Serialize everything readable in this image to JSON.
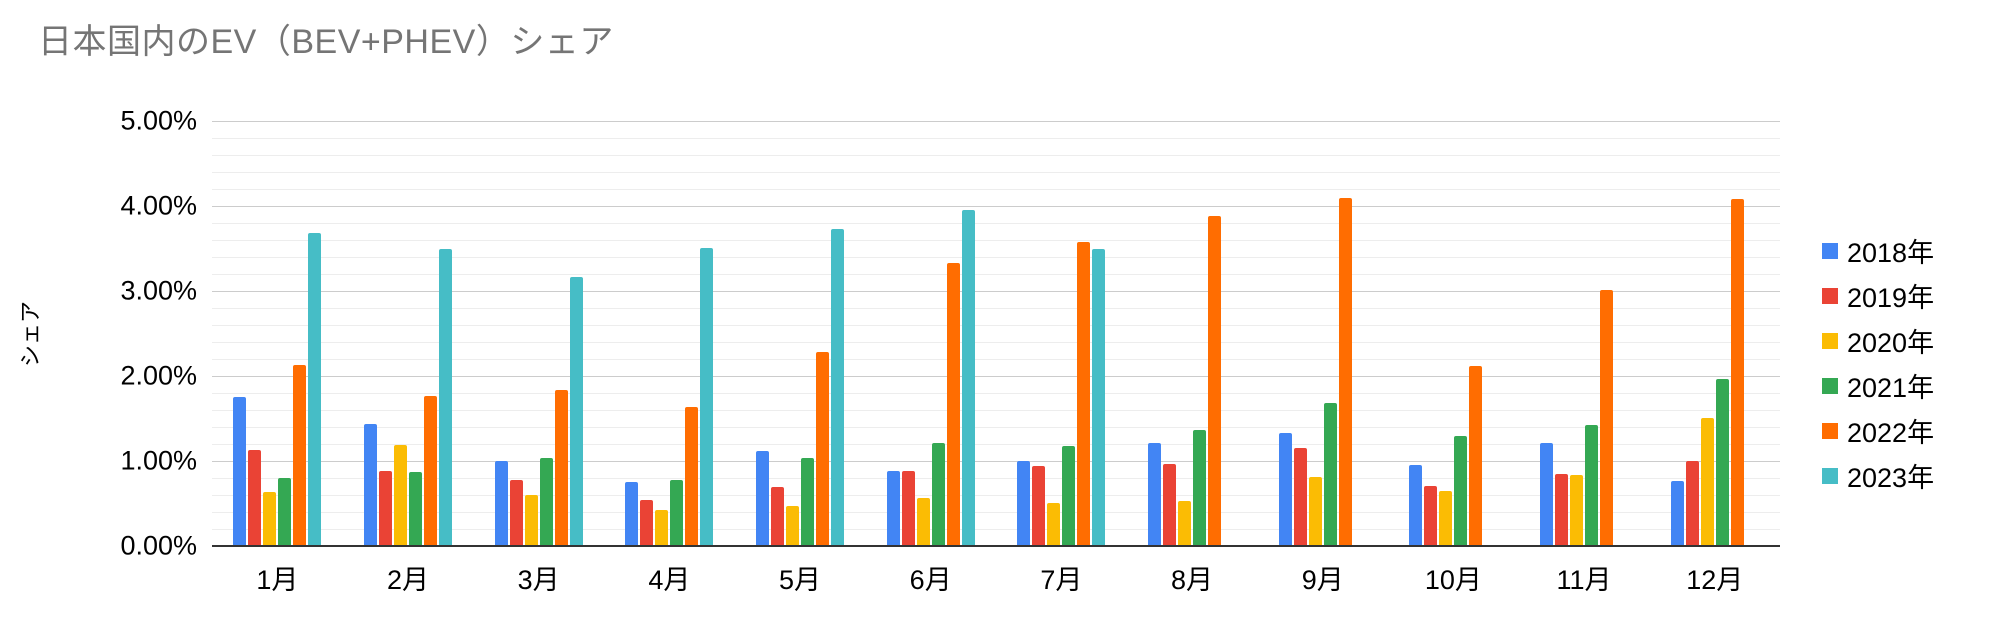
{
  "title": "日本国内のEV（BEV+PHEV）シェア",
  "colors": {
    "title_text": "#757575",
    "axis_text": "#000000",
    "grid_major": "#cccccc",
    "grid_minor": "#ededed",
    "baseline": "#333333",
    "background": "#ffffff"
  },
  "axes": {
    "y_ticks_top_down": [
      "5.00%",
      "4.00%",
      "3.00%",
      "2.00%",
      "1.00%",
      "0.00%"
    ]
  },
  "chart_data": {
    "type": "bar",
    "title": "日本国内のEV（BEV+PHEV）シェア",
    "xlabel": "",
    "ylabel": "シェア",
    "ylim": [
      0,
      5
    ],
    "y_major_step": 1,
    "y_minor_step": 0.2,
    "grid": true,
    "legend_position": "right",
    "value_unit": "%",
    "categories": [
      "1月",
      "2月",
      "3月",
      "4月",
      "5月",
      "6月",
      "7月",
      "8月",
      "9月",
      "10月",
      "11月",
      "12月"
    ],
    "series": [
      {
        "name": "2018年",
        "color": "#4285F4",
        "values": [
          1.75,
          1.43,
          1.0,
          0.75,
          1.12,
          0.88,
          1.0,
          1.21,
          1.33,
          0.95,
          1.21,
          0.77
        ]
      },
      {
        "name": "2019年",
        "color": "#EA4335",
        "values": [
          1.13,
          0.88,
          0.78,
          0.54,
          0.69,
          0.88,
          0.94,
          0.96,
          1.15,
          0.71,
          0.85,
          1.0
        ]
      },
      {
        "name": "2020年",
        "color": "#FBBC04",
        "values": [
          0.64,
          1.19,
          0.6,
          0.42,
          0.47,
          0.57,
          0.51,
          0.53,
          0.81,
          0.65,
          0.83,
          1.51
        ]
      },
      {
        "name": "2021年",
        "color": "#34A853",
        "values": [
          0.8,
          0.87,
          1.04,
          0.78,
          1.03,
          1.21,
          1.18,
          1.36,
          1.68,
          1.3,
          1.42,
          1.96
        ]
      },
      {
        "name": "2022年",
        "color": "#FF6D01",
        "values": [
          2.13,
          1.76,
          1.84,
          1.64,
          2.28,
          3.33,
          3.58,
          3.88,
          4.1,
          2.12,
          3.01,
          4.08
        ]
      },
      {
        "name": "2023年",
        "color": "#46BDC6",
        "values": [
          3.68,
          3.49,
          3.17,
          3.51,
          3.73,
          3.95,
          3.5,
          null,
          null,
          null,
          null,
          null
        ]
      }
    ]
  }
}
